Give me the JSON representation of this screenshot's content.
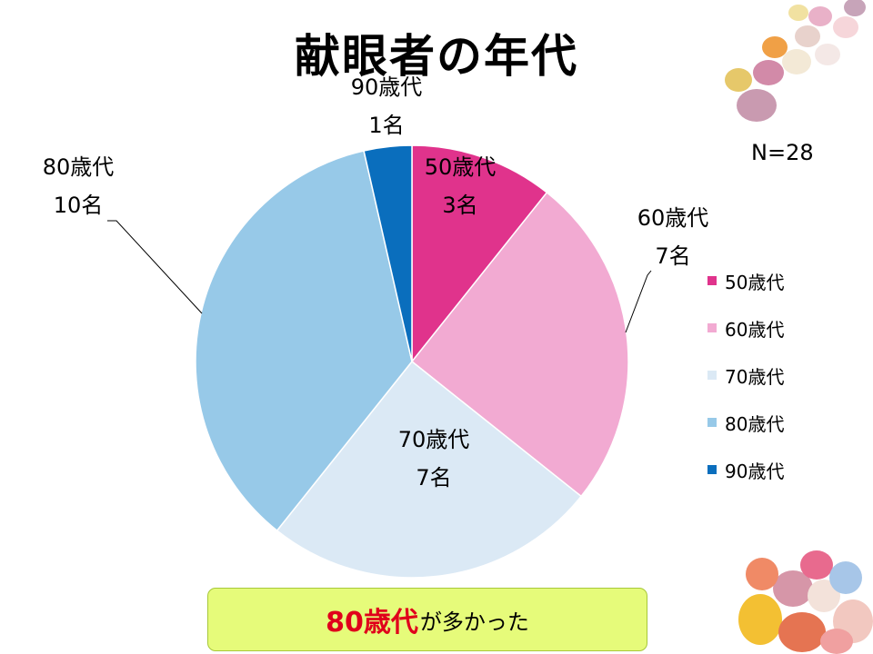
{
  "title": "献眼者の年代",
  "sample_size": "N=28",
  "chart_data": {
    "type": "pie",
    "title": "献眼者の年代",
    "categories": [
      "50歳代",
      "60歳代",
      "70歳代",
      "80歳代",
      "90歳代"
    ],
    "values": [
      3,
      7,
      7,
      10,
      1
    ],
    "value_labels": [
      "3名",
      "7名",
      "7名",
      "10名",
      "1名"
    ],
    "colors": [
      "#e0338c",
      "#f2aad2",
      "#dbe9f5",
      "#97c9e8",
      "#0a6ebd"
    ],
    "total": 28,
    "legend_position": "right",
    "start_angle": "12 o'clock",
    "direction": "clockwise"
  },
  "conclusion": {
    "highlight": "80歳代",
    "rest": "が多かった"
  },
  "decorations": {
    "top_right": "candy-eggs-image",
    "bottom_right": "candy-eggs-image"
  }
}
